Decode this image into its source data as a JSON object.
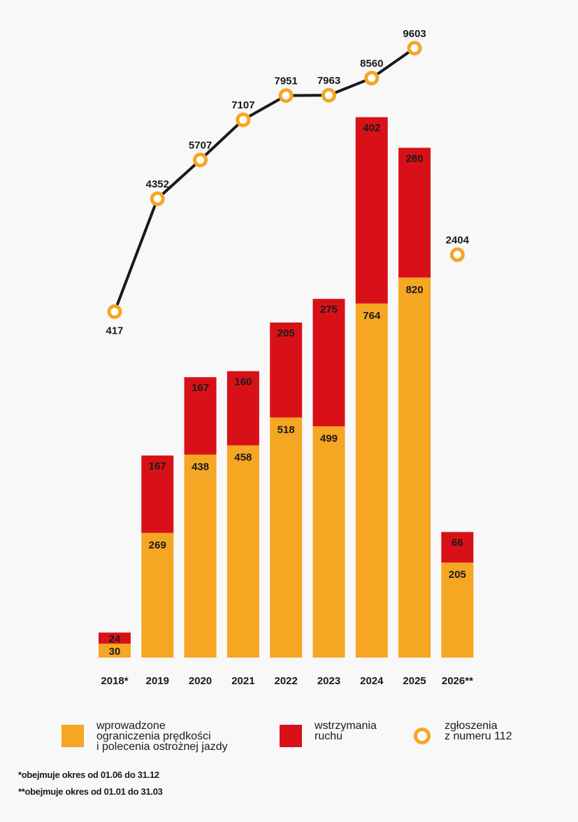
{
  "chart_data": {
    "type": "bar+line",
    "categories": [
      "2018*",
      "2019",
      "2020",
      "2021",
      "2022",
      "2023",
      "2024",
      "2025",
      "2026**"
    ],
    "series": [
      {
        "name": "wprowadzone ograniczenia prędkości i polecenia ostrożnej jazdy",
        "type": "bar",
        "stack": "main",
        "color": "#f5a623",
        "values": [
          30,
          269,
          438,
          458,
          518,
          499,
          764,
          820,
          205
        ]
      },
      {
        "name": "wstrzymania ruchu",
        "type": "bar",
        "stack": "main",
        "color": "#d81118",
        "values": [
          24,
          167,
          167,
          160,
          205,
          275,
          402,
          280,
          66
        ]
      },
      {
        "name": "zgłoszenia z numeru 112",
        "type": "line",
        "color": "#f5a623",
        "line_color": "#1a1a1a",
        "values": [
          417,
          4352,
          5707,
          7107,
          7951,
          7963,
          8560,
          9603,
          2404
        ],
        "connected_until_index": 7
      }
    ],
    "legend_placement": "bottom",
    "grid": false,
    "notes": [
      "*obejmuje okres od 01.06 do 31.12",
      "**obejmuje okres od 01.01 do 31.03"
    ]
  },
  "legend": [
    {
      "label": "wprowadzone\nograniczenia prędkości\ni polecenia ostrożnej jazdy",
      "color": "#f5a623",
      "shape": "square"
    },
    {
      "label": "wstrzymania\nruchu",
      "color": "#d81118",
      "shape": "square"
    },
    {
      "label": "zgłoszenia\nz numeru 112",
      "color": "#f5a623",
      "shape": "ring"
    }
  ],
  "notes": {
    "note1": "*obejmuje okres od 01.06 do 31.12",
    "note2": "**obejmuje okres od 01.01 do 31.03"
  }
}
